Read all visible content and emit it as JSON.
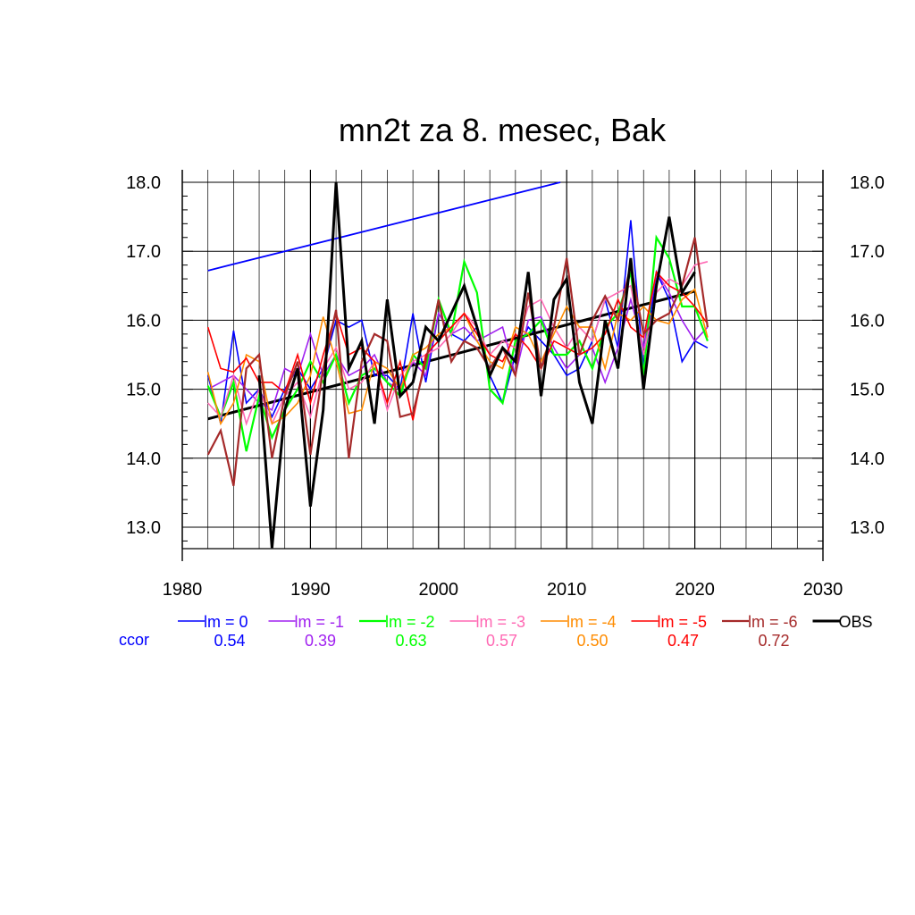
{
  "chart_data": {
    "type": "line",
    "title": "mn2t za 8. mesec, Bak",
    "xlabel": "",
    "ylabel": "",
    "xlim": [
      1980,
      2030
    ],
    "ylim": [
      12.7,
      18.0
    ],
    "xticks": [
      1980,
      1990,
      2000,
      2010,
      2020,
      2030
    ],
    "xtick_labels": [
      "1980",
      "1990",
      "2000",
      "2010",
      "2020",
      "2030"
    ],
    "yticks": [
      13.0,
      14.0,
      15.0,
      16.0,
      17.0,
      18.0
    ],
    "ytick_labels": [
      "13.0",
      "14.0",
      "15.0",
      "16.0",
      "17.0",
      "18.0"
    ],
    "grid": true,
    "legend_position": "bottom",
    "ccor_label": "ccor",
    "ccor_color": "#0000ff",
    "x": [
      1982,
      1983,
      1984,
      1985,
      1986,
      1987,
      1988,
      1989,
      1990,
      1991,
      1992,
      1993,
      1994,
      1995,
      1996,
      1997,
      1998,
      1999,
      2000,
      2001,
      2002,
      2003,
      2004,
      2005,
      2006,
      2007,
      2008,
      2009,
      2010,
      2011,
      2012,
      2013,
      2014,
      2015,
      2016,
      2017,
      2018,
      2019,
      2020,
      2021
    ],
    "series": [
      {
        "name": "lm = 0",
        "color": "#0000ff",
        "ccor": "0.54",
        "width": 1.6,
        "values": [
          15.2,
          14.5,
          15.85,
          14.8,
          15.0,
          14.6,
          15.0,
          15.3,
          15.0,
          15.3,
          16.0,
          15.9,
          16.0,
          15.2,
          15.2,
          15.0,
          16.1,
          15.1,
          16.1,
          15.8,
          15.7,
          15.9,
          15.2,
          14.8,
          15.5,
          15.9,
          15.7,
          15.5,
          15.2,
          15.3,
          15.7,
          16.3,
          15.6,
          17.45,
          15.3,
          16.7,
          16.3,
          15.4,
          15.7,
          15.6
        ]
      },
      {
        "name": "lm = -1",
        "color": "#a020f0",
        "ccor": "0.39",
        "width": 1.6,
        "values": [
          15.0,
          15.1,
          15.2,
          15.0,
          14.8,
          14.7,
          15.3,
          15.2,
          15.8,
          15.2,
          15.5,
          15.2,
          15.3,
          15.5,
          15.1,
          15.0,
          15.4,
          15.2,
          16.1,
          15.8,
          15.9,
          15.7,
          15.8,
          15.9,
          15.2,
          16.0,
          16.05,
          15.6,
          15.3,
          15.5,
          15.6,
          15.1,
          15.6,
          16.3,
          15.6,
          16.7,
          16.4,
          16.0,
          15.7,
          15.9
        ]
      },
      {
        "name": "lm = -2",
        "color": "#00ff00",
        "ccor": "0.63",
        "width": 2.2,
        "values": [
          15.05,
          14.6,
          15.1,
          14.1,
          14.9,
          14.3,
          14.7,
          15.0,
          15.4,
          15.1,
          15.5,
          14.8,
          15.2,
          15.3,
          15.1,
          14.9,
          15.5,
          15.3,
          16.3,
          15.8,
          16.85,
          16.4,
          15.0,
          14.8,
          15.7,
          15.8,
          16.0,
          15.5,
          15.5,
          15.7,
          15.3,
          15.9,
          16.1,
          16.7,
          15.2,
          17.2,
          16.9,
          16.2,
          16.2,
          15.7
        ]
      },
      {
        "name": "lm = -3",
        "color": "#ff69b4",
        "ccor": "0.57",
        "width": 1.6,
        "values": [
          14.8,
          14.6,
          15.2,
          14.5,
          15.0,
          14.5,
          14.9,
          15.1,
          14.6,
          15.3,
          15.6,
          15.0,
          15.1,
          15.4,
          14.7,
          15.2,
          15.4,
          15.5,
          15.6,
          15.8,
          16.1,
          15.9,
          15.5,
          15.7,
          15.6,
          16.2,
          16.3,
          15.9,
          15.6,
          15.9,
          15.7,
          16.3,
          16.4,
          16.5,
          15.5,
          16.4,
          16.6,
          16.5,
          16.8,
          16.85
        ]
      },
      {
        "name": "lm = -4",
        "color": "#ff8c00",
        "ccor": "0.50",
        "width": 1.6,
        "values": [
          15.25,
          14.5,
          14.8,
          15.5,
          15.4,
          14.5,
          14.6,
          14.8,
          15.2,
          16.05,
          15.4,
          14.65,
          14.7,
          15.4,
          15.3,
          15.0,
          15.5,
          15.6,
          15.8,
          15.9,
          16.1,
          15.7,
          15.4,
          15.3,
          15.9,
          15.8,
          15.4,
          15.8,
          16.2,
          15.9,
          15.9,
          15.3,
          16.1,
          16.0,
          16.2,
          16.0,
          15.95,
          16.3,
          16.45,
          15.75
        ]
      },
      {
        "name": "lm = -5",
        "color": "#ff0000",
        "ccor": "0.47",
        "width": 1.6,
        "values": [
          15.9,
          15.3,
          15.25,
          15.45,
          15.1,
          15.1,
          14.95,
          15.5,
          14.8,
          15.5,
          16.1,
          15.5,
          15.6,
          15.4,
          14.8,
          15.4,
          14.55,
          15.5,
          15.7,
          15.9,
          16.1,
          15.8,
          15.5,
          15.4,
          15.8,
          15.6,
          15.3,
          15.7,
          15.6,
          15.5,
          15.6,
          15.8,
          16.3,
          15.9,
          15.75,
          16.7,
          16.5,
          16.4,
          16.2,
          15.95
        ]
      },
      {
        "name": "lm = -6",
        "color": "#a52a2a",
        "ccor": "0.72",
        "width": 2.2,
        "values": [
          14.05,
          14.4,
          13.6,
          15.3,
          15.5,
          14.0,
          14.9,
          15.4,
          14.05,
          15.3,
          16.15,
          14.0,
          15.4,
          15.8,
          15.7,
          14.6,
          14.65,
          15.4,
          16.3,
          15.4,
          15.7,
          15.6,
          15.3,
          15.6,
          15.2,
          16.4,
          15.3,
          15.9,
          16.9,
          15.5,
          16.0,
          16.35,
          16.0,
          16.8,
          15.8,
          16.0,
          16.1,
          16.5,
          17.2,
          15.9
        ]
      },
      {
        "name": "OBS",
        "color": "#000000",
        "ccor": "",
        "width": 3.0,
        "values": [
          null,
          null,
          null,
          null,
          15.2,
          12.7,
          14.7,
          15.3,
          13.3,
          14.7,
          18.0,
          15.3,
          15.7,
          14.5,
          16.3,
          14.9,
          15.1,
          15.9,
          15.7,
          16.1,
          16.5,
          15.9,
          15.2,
          15.6,
          15.4,
          16.7,
          14.9,
          16.3,
          16.6,
          15.1,
          14.5,
          16.0,
          15.3,
          16.9,
          15.0,
          16.5,
          17.5,
          16.4,
          16.7,
          null
        ]
      }
    ],
    "trend_lines": [
      {
        "name": "obs-trend",
        "color": "#000000",
        "x": [
          1982,
          2020
        ],
        "y": [
          14.57,
          16.42
        ],
        "width": 3.0
      },
      {
        "name": "model-trend",
        "color": "#0000ff",
        "x": [
          1982,
          2009.5
        ],
        "y": [
          16.72,
          18.0
        ],
        "width": 1.8
      }
    ]
  }
}
